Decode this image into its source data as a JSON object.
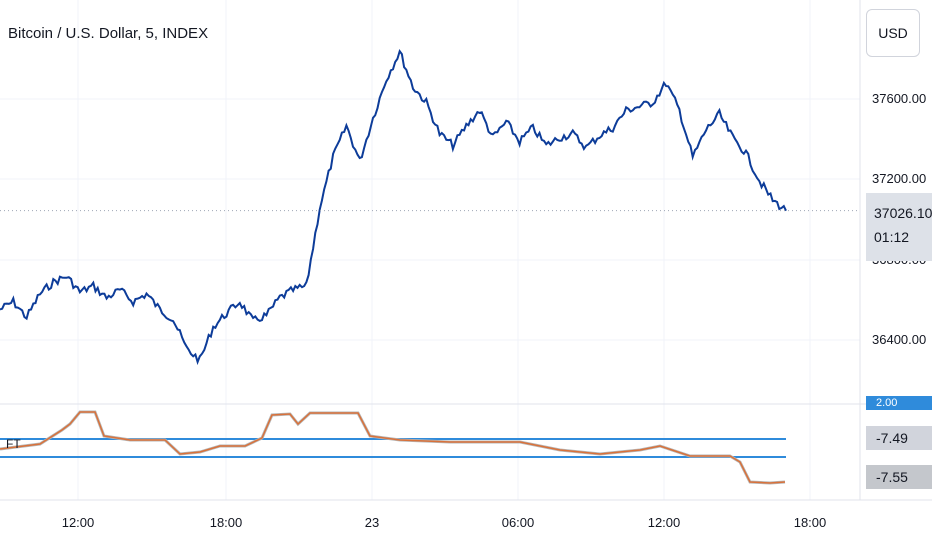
{
  "chart": {
    "title": "Bitcoin / U.S. Dollar, 5, INDEX",
    "currency": "USD",
    "price_labels": [
      "37600.00",
      "37200.00",
      "36800.00",
      "36400.00"
    ],
    "time_labels": [
      "12:00",
      "18:00",
      "23",
      "06:00",
      "12:00",
      "18:00"
    ],
    "last_price": "37026.10",
    "countdown": "01:12",
    "indicator_name": "FT",
    "indicator_values": {
      "top": "2.00",
      "value1": "-7.49",
      "value2": "-7.55"
    },
    "colors": {
      "candle": "#0d3c99",
      "indicator_orange": "#d9713a",
      "indicator_gray": "#b6b6b6",
      "level_line": "#2f8bdb",
      "axis_badge": "#2f8bdb"
    }
  },
  "chart_data": {
    "type": "line",
    "title": "Bitcoin / U.S. Dollar, 5, INDEX",
    "series": [
      {
        "values": [
          36520,
          36560,
          36480,
          36600,
          36660,
          36690,
          36610,
          36640,
          36580,
          36620,
          36560,
          36600,
          36520,
          36470,
          36320,
          36260,
          36430,
          36500,
          36560,
          36460,
          36490,
          36580,
          36620,
          36640,
          37040,
          37300,
          37460,
          37280,
          37500,
          37700,
          37840,
          37660,
          37580,
          37420,
          37360,
          37460,
          37540,
          37400,
          37480,
          37380,
          37450,
          37360,
          37400,
          37420,
          37350,
          37410,
          37450,
          37540,
          37560,
          37580,
          37680,
          37540,
          37300,
          37440,
          37520,
          37400,
          37320,
          37180,
          37080,
          37026
        ]
      }
    ]
  }
}
